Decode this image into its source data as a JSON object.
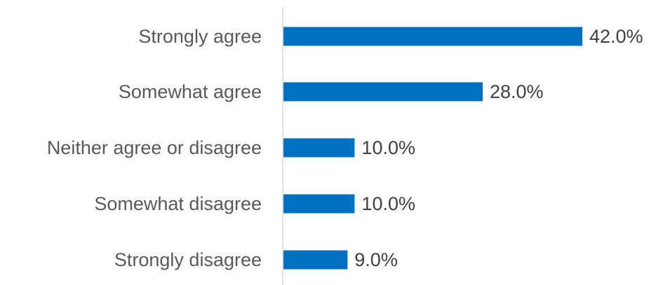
{
  "chart_data": {
    "type": "bar",
    "orientation": "horizontal",
    "categories": [
      "Strongly agree",
      "Somewhat agree",
      "Neither agree or disagree",
      "Somewhat disagree",
      "Strongly disagree"
    ],
    "values": [
      42.0,
      28.0,
      10.0,
      10.0,
      9.0
    ],
    "data_labels": [
      "42.0%",
      "28.0%",
      "10.0%",
      "10.0%",
      "9.0%"
    ],
    "unit": "%",
    "title": "",
    "xlabel": "",
    "ylabel": "",
    "xlim": [
      0,
      50
    ],
    "grid": false,
    "legend": "none",
    "colors": {
      "bar": "#0070C0",
      "axis": "#D9D9D9"
    }
  }
}
